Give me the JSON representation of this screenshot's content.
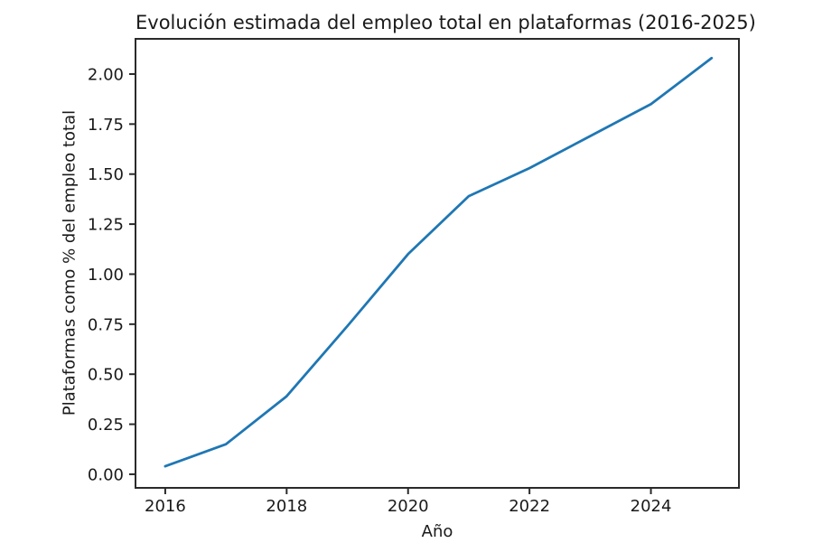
{
  "chart_data": {
    "type": "line",
    "title": "Evolución estimada del empleo total en plataformas (2016-2025)",
    "xlabel": "Año",
    "ylabel": "Plataformas como % del empleo total",
    "x": [
      2016,
      2017,
      2018,
      2019,
      2020,
      2021,
      2022,
      2023,
      2024,
      2025
    ],
    "values": [
      0.04,
      0.15,
      0.39,
      0.74,
      1.1,
      1.39,
      1.53,
      1.69,
      1.85,
      2.08
    ],
    "line_color": "#1f77b4",
    "axis_color": "#2a2a2a",
    "text_color": "#1a1a1a",
    "background_color": "#ffffff",
    "xlim": [
      2015.51,
      2025.45
    ],
    "ylim": [
      -0.068,
      2.176
    ],
    "xticks": {
      "values": [
        2016,
        2018,
        2020,
        2022,
        2024
      ],
      "labels": [
        "2016",
        "2018",
        "2020",
        "2022",
        "2024"
      ]
    },
    "yticks": {
      "values": [
        0.0,
        0.25,
        0.5,
        0.75,
        1.0,
        1.25,
        1.5,
        1.75,
        2.0
      ],
      "labels": [
        "0.00",
        "0.25",
        "0.50",
        "0.75",
        "1.00",
        "1.25",
        "1.50",
        "1.75",
        "2.00"
      ]
    },
    "grid": false,
    "legend_position": "none"
  }
}
